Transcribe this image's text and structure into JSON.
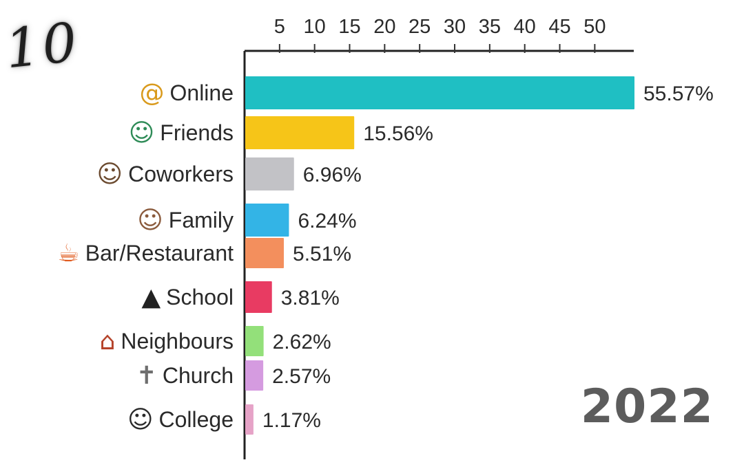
{
  "corner_mark": "10",
  "year": "2022",
  "chart_data": {
    "type": "bar",
    "orientation": "horizontal",
    "categories": [
      "Online",
      "Friends",
      "Coworkers",
      "Family",
      "Bar/Restaurant",
      "School",
      "Neighbours",
      "Church",
      "College"
    ],
    "values": [
      55.57,
      15.56,
      6.96,
      6.24,
      5.51,
      3.81,
      2.62,
      2.57,
      1.17
    ],
    "value_labels": [
      "55.57%",
      "15.56%",
      "6.96%",
      "6.24%",
      "5.51%",
      "3.81%",
      "2.62%",
      "2.57%",
      "1.17%"
    ],
    "icons": [
      "at-sign-icon",
      "friends-icon",
      "coworkers-icon",
      "family-icon",
      "cocktail-icon",
      "graduation-cap-icon",
      "house-icon",
      "church-icon",
      "graduate-icon"
    ],
    "colors": [
      "#1fbfc3",
      "#f6c518",
      "#c2c2c6",
      "#33b4e6",
      "#f38f5d",
      "#e83b62",
      "#93e07a",
      "#d59be0",
      "#e6a3c7"
    ],
    "xticks": [
      5,
      10,
      15,
      20,
      25,
      30,
      35,
      40,
      45,
      50
    ],
    "xlim": [
      0,
      56
    ],
    "axis_position": "top",
    "title": "",
    "xlabel": "",
    "ylabel": ""
  }
}
